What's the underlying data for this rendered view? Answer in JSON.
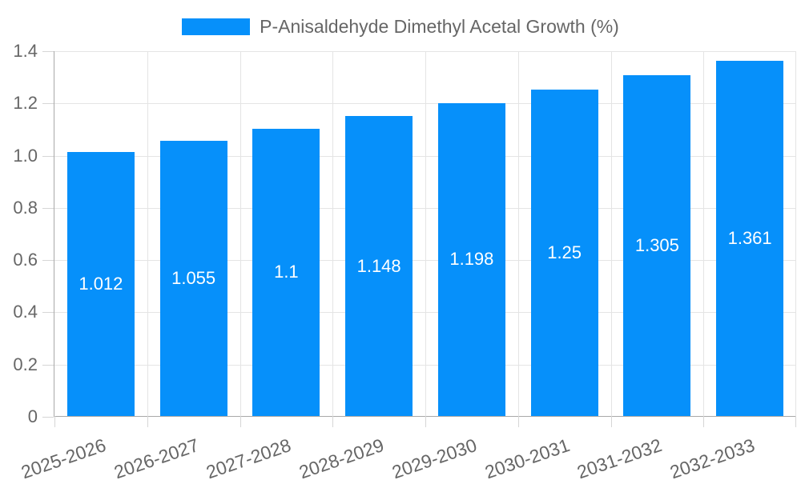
{
  "legend": {
    "label": "P-Anisaldehyde Dimethyl Acetal Growth (%)"
  },
  "chart_data": {
    "type": "bar",
    "title": "P-Anisaldehyde Dimethyl Acetal Growth (%)",
    "categories": [
      "2025-2026",
      "2026-2027",
      "2027-2028",
      "2028-2029",
      "2029-2030",
      "2030-2031",
      "2031-2032",
      "2032-2033"
    ],
    "values": [
      1.012,
      1.055,
      1.1,
      1.148,
      1.198,
      1.25,
      1.305,
      1.361
    ],
    "value_labels": [
      "1.012",
      "1.055",
      "1.1",
      "1.148",
      "1.198",
      "1.25",
      "1.305",
      "1.361"
    ],
    "xlabel": "",
    "ylabel": "",
    "ylim": [
      0,
      1.4
    ],
    "yticks": [
      0,
      0.2,
      0.4,
      0.6,
      0.8,
      1.0,
      1.2,
      1.4
    ],
    "ytick_labels": [
      "0",
      "0.2",
      "0.4",
      "0.6",
      "0.8",
      "1.0",
      "1.2",
      "1.4"
    ],
    "grid": true,
    "legend_position": "top",
    "bar_label_position": "center"
  },
  "colors": {
    "bar": "#0690fa",
    "grid": "#e4e4e4",
    "axis_border": "#a9a9a9",
    "tick_mark": "#d6d6d6",
    "tick_text": "#666666",
    "legend_text": "#666666",
    "bar_label_text": "#ffffff",
    "background": "#ffffff"
  }
}
